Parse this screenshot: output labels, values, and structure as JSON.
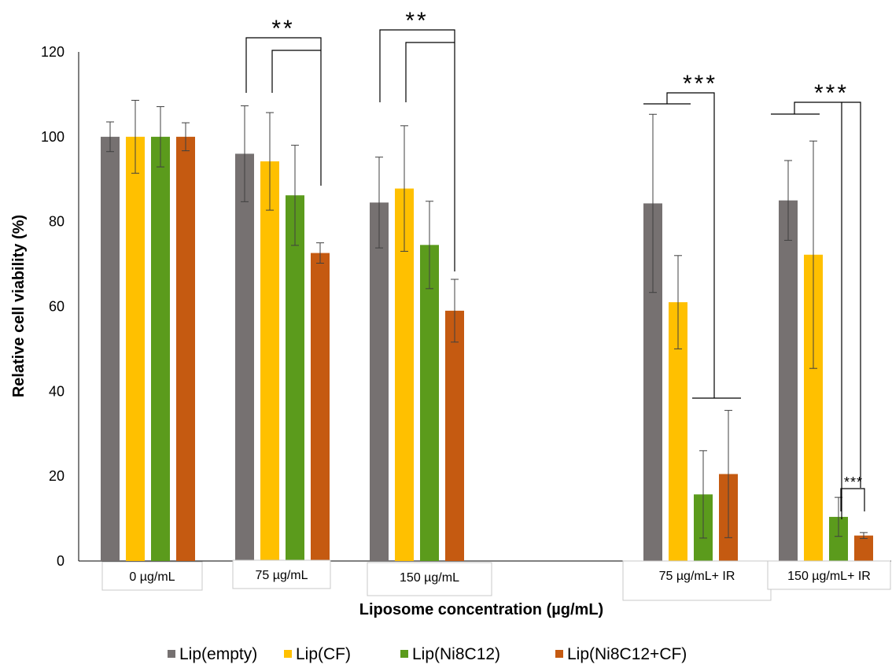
{
  "chart_data": {
    "type": "bar",
    "title": "",
    "xlabel": "Liposome concentration (µg/mL)",
    "ylabel": "Relative cell viability (%)",
    "ylim": [
      0,
      120
    ],
    "yticks": [
      "0",
      "20",
      "40",
      "60",
      "80",
      "100",
      "120"
    ],
    "grid": false,
    "legend_position": "bottom",
    "categories": [
      "0 µg/mL",
      "75 µg/mL",
      "150 µg/mL",
      "75 µg/mL+ IR",
      "150 µg/mL+ IR"
    ],
    "series": [
      {
        "name": "Lip(empty)",
        "color": "#767171",
        "values": [
          100,
          96,
          84.5,
          84.3,
          85
        ],
        "errors": [
          3.5,
          11.3,
          10.7,
          21,
          9.4
        ]
      },
      {
        "name": "Lip(CF)",
        "color": "#ffc000",
        "values": [
          100,
          94.2,
          87.8,
          61,
          72.2
        ],
        "errors": [
          8.6,
          11.5,
          14.8,
          11,
          26.8
        ]
      },
      {
        "name": "Lip(Ni8C12)",
        "color": "#5b9b1c",
        "values": [
          100,
          86.2,
          74.5,
          15.7,
          10.4
        ],
        "errors": [
          7.1,
          11.8,
          10.3,
          10.3,
          4.6
        ]
      },
      {
        "name": "Lip(Ni8C12+CF)",
        "color": "#c55a11",
        "values": [
          100,
          72.6,
          59,
          20.5,
          6
        ],
        "errors": [
          3.3,
          2.4,
          7.4,
          15,
          0.7
        ]
      }
    ],
    "annotations": [
      "**",
      "**",
      "***",
      "***",
      "***"
    ]
  }
}
